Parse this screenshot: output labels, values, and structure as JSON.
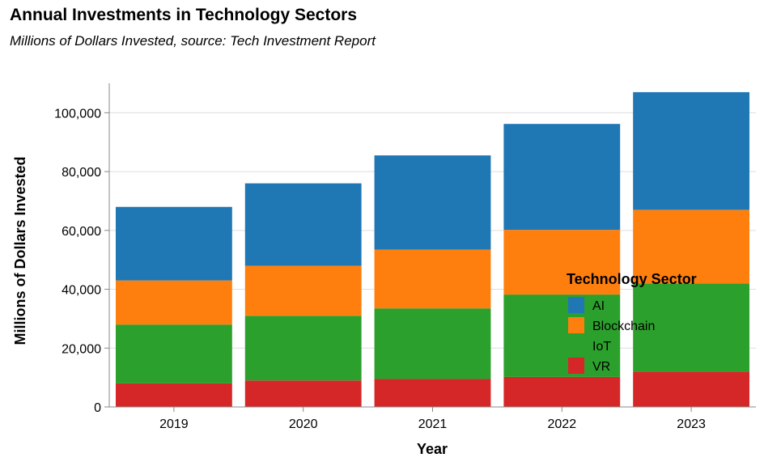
{
  "chart_data": {
    "type": "bar",
    "stacked": true,
    "title": "Annual Investments in Technology Sectors",
    "subtitle": "Millions of Dollars Invested, source: Tech Investment Report",
    "xlabel": "Year",
    "ylabel": "Millions of Dollars Invested",
    "categories": [
      "2019",
      "2020",
      "2021",
      "2022",
      "2023"
    ],
    "ylim": [
      0,
      110000
    ],
    "yticks": [
      0,
      20000,
      40000,
      60000,
      80000,
      100000
    ],
    "ytick_labels": [
      "0",
      "20,000",
      "40,000",
      "60,000",
      "80,000",
      "100,000"
    ],
    "grid": true,
    "legend": {
      "title": "Technology Sector",
      "placement": "right-center-over-plot"
    },
    "series": [
      {
        "name": "VR",
        "color": "#d62728",
        "values": [
          8000,
          9000,
          9500,
          10200,
          12000
        ]
      },
      {
        "name": "IoT",
        "color": "#2ca02c",
        "values": [
          20000,
          22000,
          24000,
          28000,
          30000
        ]
      },
      {
        "name": "Blockchain",
        "color": "#ff7f0e",
        "values": [
          15000,
          17000,
          20000,
          22000,
          25000
        ]
      },
      {
        "name": "AI",
        "color": "#1f77b4",
        "values": [
          25000,
          28000,
          32000,
          36000,
          40000
        ]
      }
    ],
    "legend_order": [
      "AI",
      "Blockchain",
      "IoT",
      "VR"
    ]
  }
}
